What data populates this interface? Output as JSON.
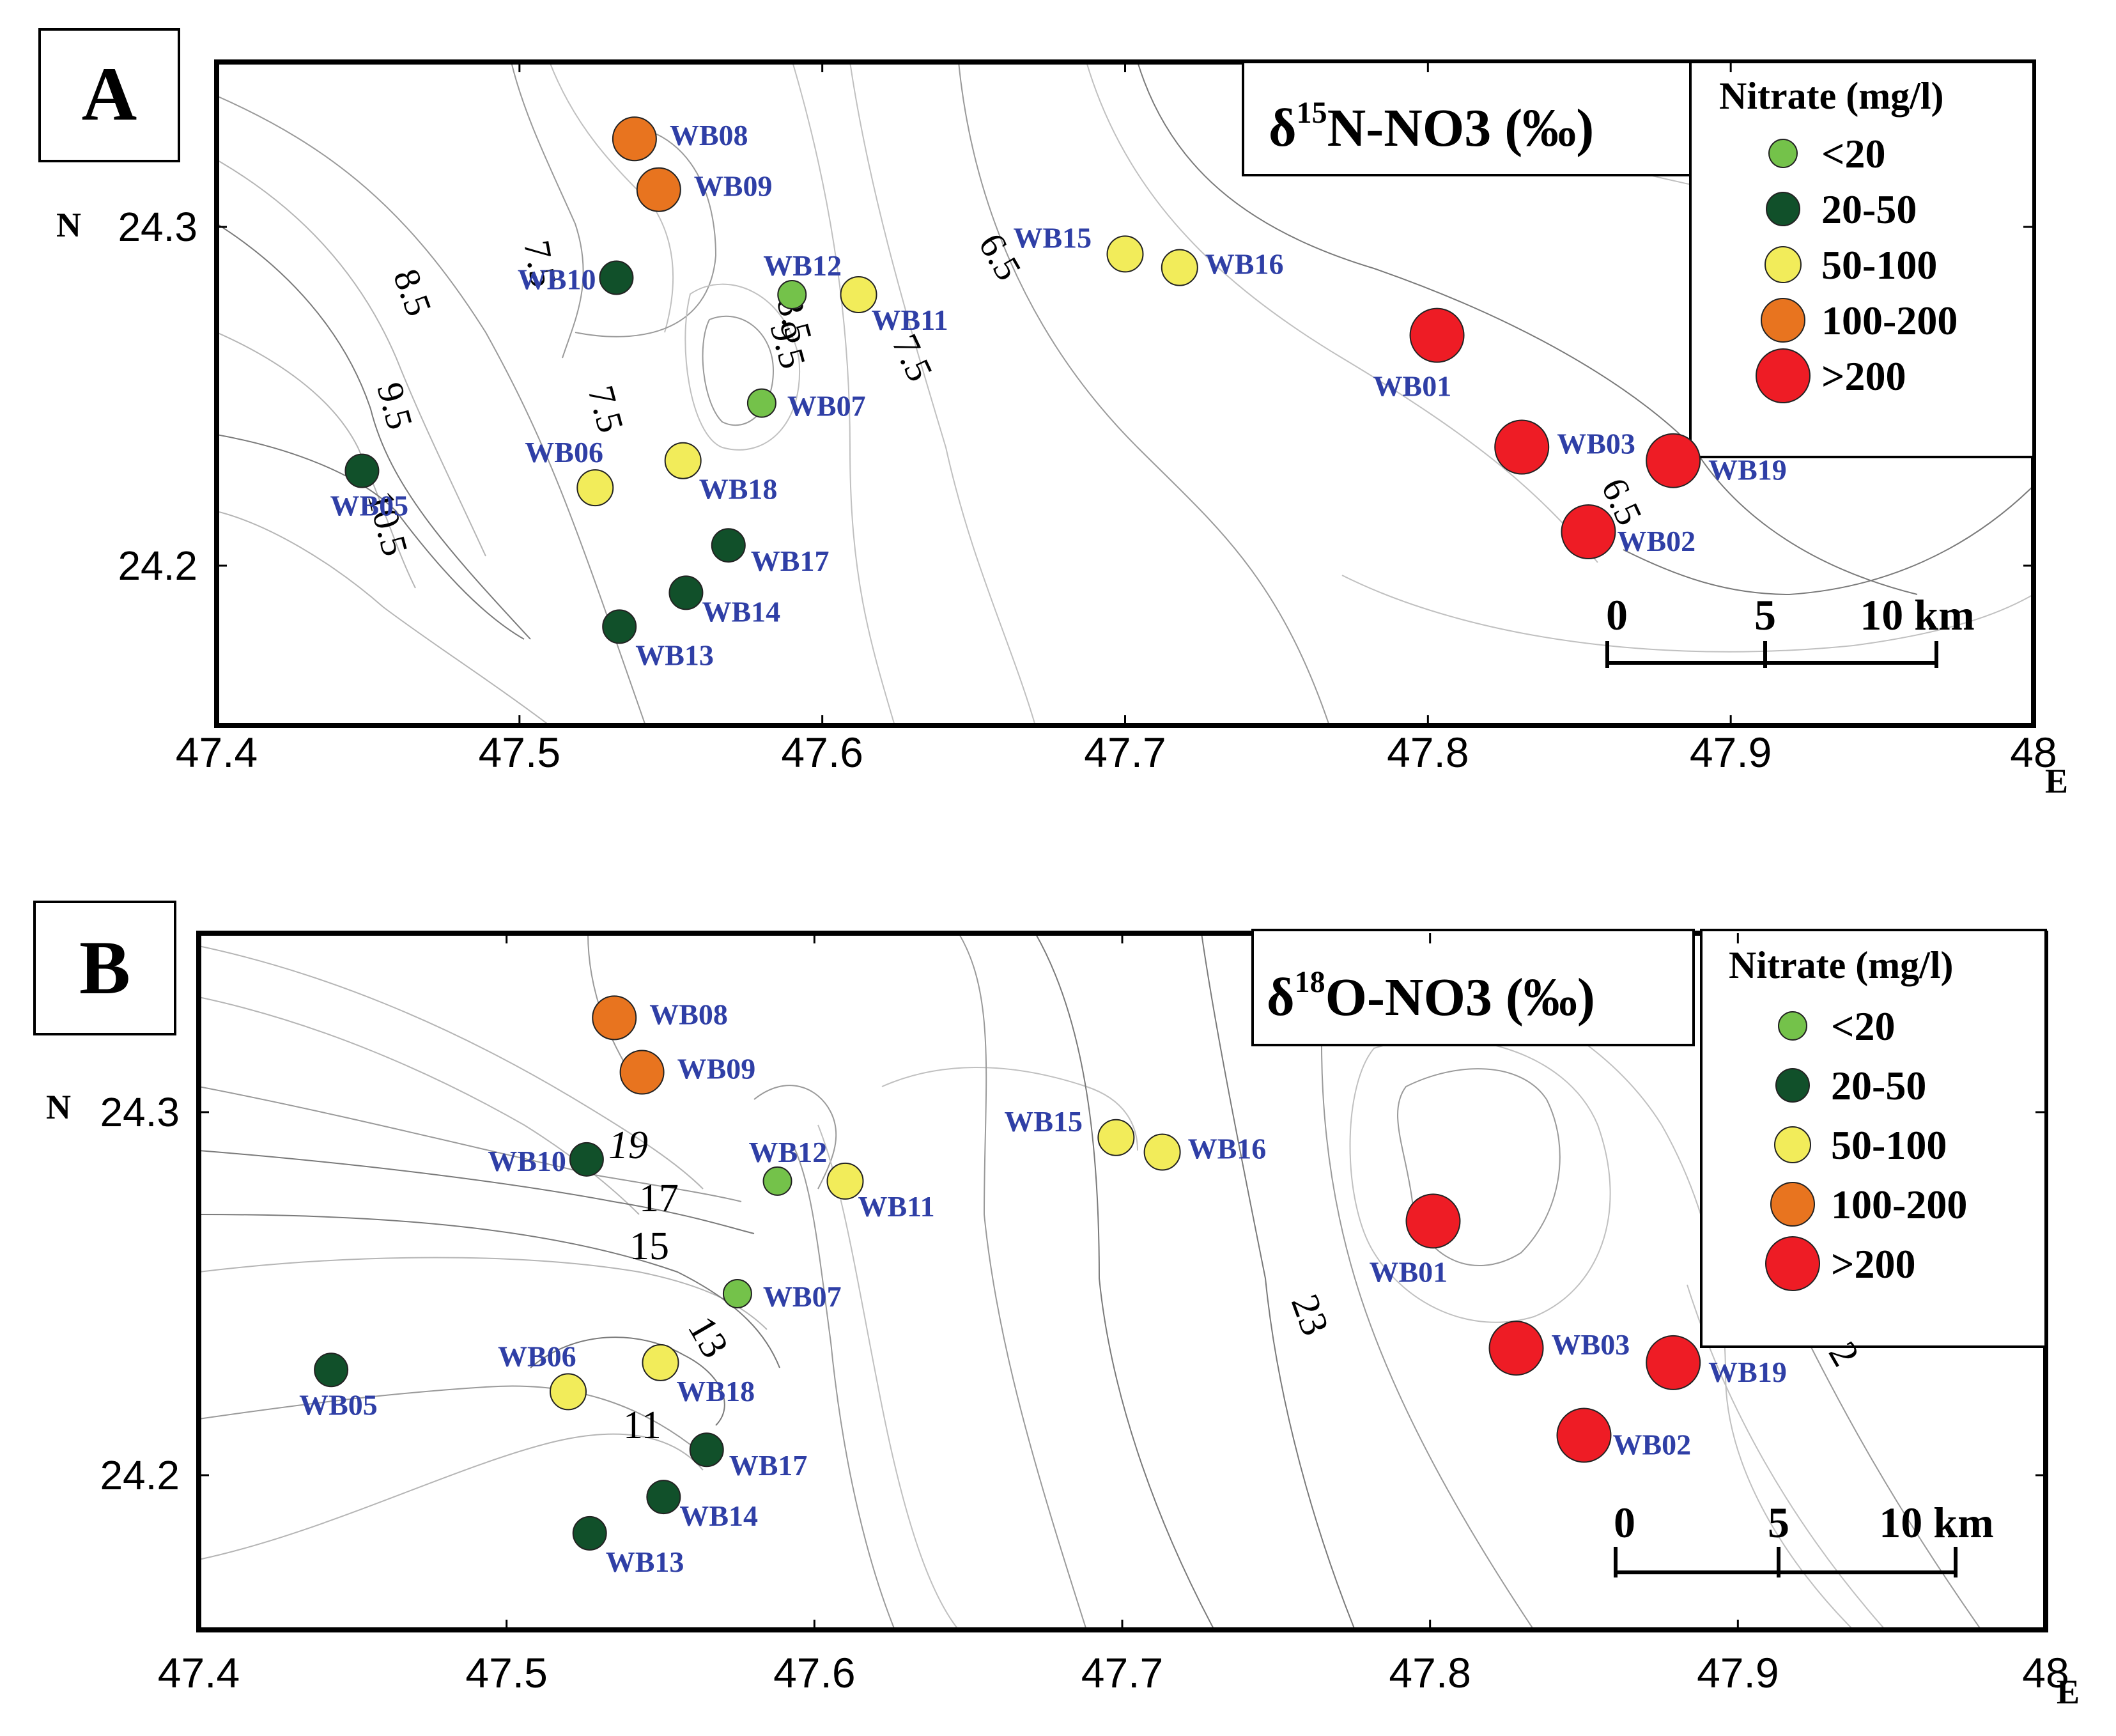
{
  "figure": {
    "axis": {
      "x_ticks": [
        47.4,
        47.5,
        47.6,
        47.7,
        47.8,
        47.9,
        48
      ],
      "x_tick_labels": [
        "47.4",
        "47.5",
        "47.6",
        "47.7",
        "47.8",
        "47.9",
        "48"
      ],
      "x_unit": "E",
      "y_ticks": [
        24.3,
        24.2
      ],
      "y_tick_labels": [
        "24.3",
        "24.2"
      ],
      "y_unit": "N"
    },
    "legend": {
      "title": "Nitrate (mg/l)",
      "entries": [
        {
          "label": "<20",
          "color": "#74c24a"
        },
        {
          "label": "20-50",
          "color": "#11502a"
        },
        {
          "label": "50-100",
          "color": "#f2ec5a"
        },
        {
          "label": "100-200",
          "color": "#e8741f"
        },
        {
          "label": ">200",
          "color": "#ee1c25"
        }
      ]
    },
    "scale_bar": {
      "labels": [
        "0",
        "5",
        "10 km"
      ]
    },
    "panels": [
      {
        "letter": "A",
        "title_symbol": "δ",
        "title_sup": "15",
        "title_rest": "N-NO3 (‰)",
        "contour_labels": [
          "8.5",
          "7.5",
          "9.5",
          "10.5",
          "7.5",
          "8.5",
          "9.5",
          "7.5",
          "6.5",
          "6.5"
        ],
        "wells": [
          {
            "name": "WB08",
            "lon": 47.538,
            "lat": 24.326,
            "cls": 3
          },
          {
            "name": "WB09",
            "lon": 47.546,
            "lat": 24.311,
            "cls": 3
          },
          {
            "name": "WB10",
            "lon": 47.532,
            "lat": 24.285,
            "cls": 1
          },
          {
            "name": "WB12",
            "lon": 47.59,
            "lat": 24.28,
            "cls": 0
          },
          {
            "name": "WB11",
            "lon": 47.612,
            "lat": 24.28,
            "cls": 2
          },
          {
            "name": "WB07",
            "lon": 47.58,
            "lat": 24.248,
            "cls": 0
          },
          {
            "name": "WB06",
            "lon": 47.525,
            "lat": 24.223,
            "cls": 2
          },
          {
            "name": "WB18",
            "lon": 47.554,
            "lat": 24.231,
            "cls": 2
          },
          {
            "name": "WB05",
            "lon": 47.448,
            "lat": 24.228,
            "cls": 1
          },
          {
            "name": "WB17",
            "lon": 47.569,
            "lat": 24.206,
            "cls": 1
          },
          {
            "name": "WB14",
            "lon": 47.555,
            "lat": 24.192,
            "cls": 1
          },
          {
            "name": "WB13",
            "lon": 47.533,
            "lat": 24.182,
            "cls": 1
          },
          {
            "name": "WB15",
            "lon": 47.7,
            "lat": 24.292,
            "cls": 2
          },
          {
            "name": "WB16",
            "lon": 47.718,
            "lat": 24.288,
            "cls": 2
          },
          {
            "name": "WB01",
            "lon": 47.803,
            "lat": 24.268,
            "cls": 4
          },
          {
            "name": "WB03",
            "lon": 47.831,
            "lat": 24.235,
            "cls": 4
          },
          {
            "name": "WB19",
            "lon": 47.881,
            "lat": 24.231,
            "cls": 4
          },
          {
            "name": "WB02",
            "lon": 47.853,
            "lat": 24.21,
            "cls": 4
          }
        ]
      },
      {
        "letter": "B",
        "title_symbol": "δ",
        "title_sup": "18",
        "title_rest": "O-NO3 (‰)",
        "contour_labels": [
          "19",
          "17",
          "15",
          "13",
          "11",
          "23",
          "2"
        ],
        "wells": [
          {
            "name": "WB08",
            "lon": 47.535,
            "lat": 24.326,
            "cls": 3
          },
          {
            "name": "WB09",
            "lon": 47.544,
            "lat": 24.311,
            "cls": 3
          },
          {
            "name": "WB10",
            "lon": 47.526,
            "lat": 24.287,
            "cls": 1
          },
          {
            "name": "WB12",
            "lon": 47.588,
            "lat": 24.281,
            "cls": 0
          },
          {
            "name": "WB11",
            "lon": 47.61,
            "lat": 24.281,
            "cls": 2
          },
          {
            "name": "WB07",
            "lon": 47.575,
            "lat": 24.25,
            "cls": 0
          },
          {
            "name": "WB06",
            "lon": 47.52,
            "lat": 24.223,
            "cls": 2
          },
          {
            "name": "WB18",
            "lon": 47.55,
            "lat": 24.231,
            "cls": 2
          },
          {
            "name": "WB05",
            "lon": 47.443,
            "lat": 24.229,
            "cls": 1
          },
          {
            "name": "WB17",
            "lon": 47.565,
            "lat": 24.207,
            "cls": 1
          },
          {
            "name": "WB14",
            "lon": 47.551,
            "lat": 24.194,
            "cls": 1
          },
          {
            "name": "WB13",
            "lon": 47.527,
            "lat": 24.184,
            "cls": 1
          },
          {
            "name": "WB15",
            "lon": 47.698,
            "lat": 24.293,
            "cls": 2
          },
          {
            "name": "WB16",
            "lon": 47.713,
            "lat": 24.289,
            "cls": 2
          },
          {
            "name": "WB01",
            "lon": 47.801,
            "lat": 24.27,
            "cls": 4
          },
          {
            "name": "WB03",
            "lon": 47.828,
            "lat": 24.235,
            "cls": 4
          },
          {
            "name": "WB19",
            "lon": 47.879,
            "lat": 24.231,
            "cls": 4
          },
          {
            "name": "WB02",
            "lon": 47.85,
            "lat": 24.211,
            "cls": 4
          }
        ]
      }
    ]
  }
}
